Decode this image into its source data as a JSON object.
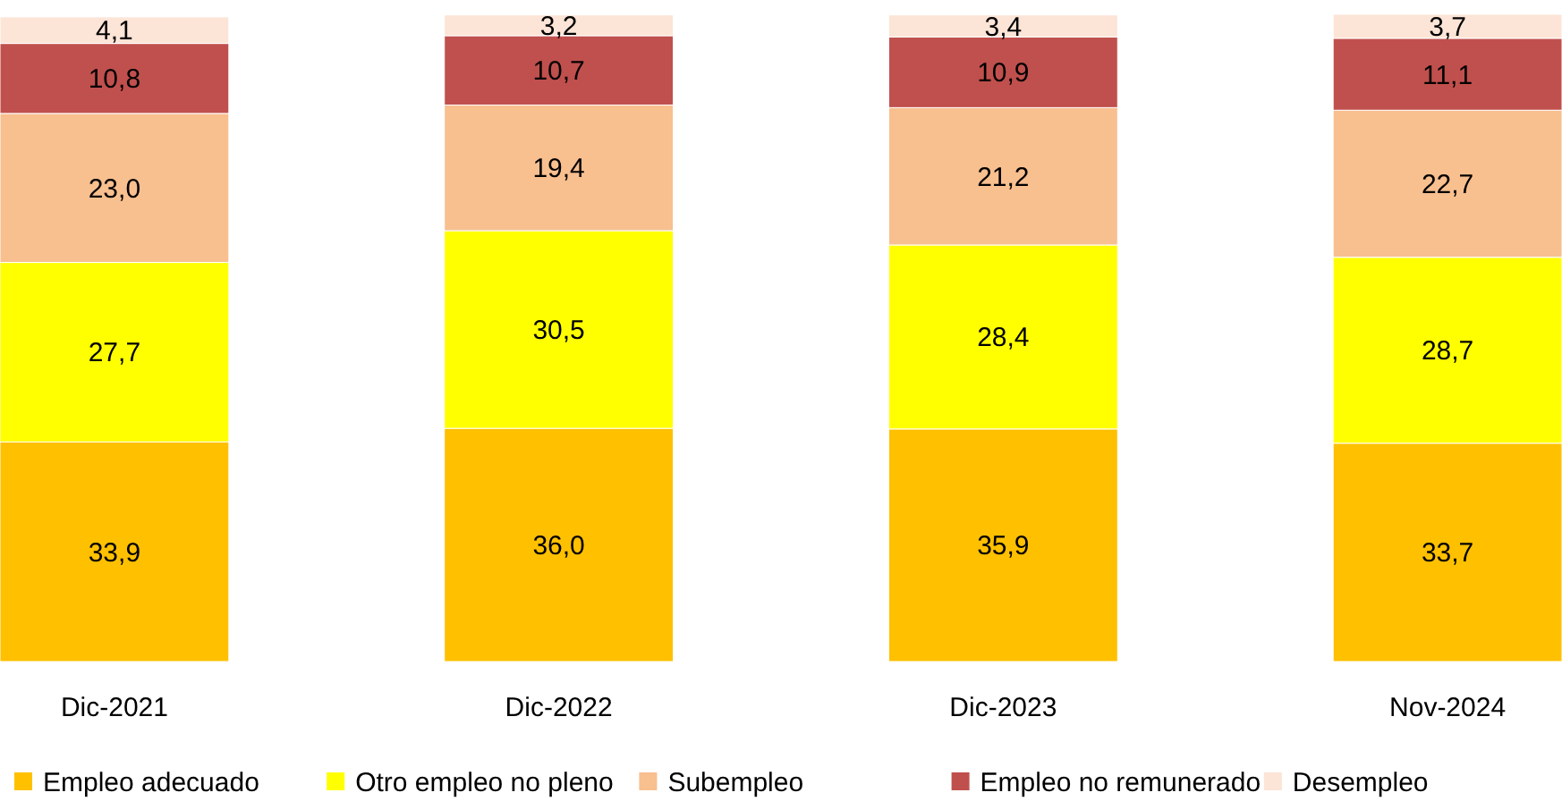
{
  "chart_data": {
    "type": "bar",
    "stacked": true,
    "legend": "bottom",
    "categories": [
      "Dic-2021",
      "Dic-2022",
      "Dic-2023",
      "Nov-2024"
    ],
    "series": [
      {
        "name": "Empleo adecuado",
        "color": "#ffc000",
        "values": [
          33.9,
          36.0,
          35.9,
          33.7
        ],
        "value_labels": [
          "33,9",
          "36,0",
          "35,9",
          "33,7"
        ]
      },
      {
        "name": "Otro empleo no pleno",
        "color": "#ffff00",
        "values": [
          27.7,
          30.5,
          28.4,
          28.7
        ],
        "value_labels": [
          "27,7",
          "30,5",
          "28,4",
          "28,7"
        ]
      },
      {
        "name": "Subempleo",
        "color": "#f8bf8f",
        "values": [
          23.0,
          19.4,
          21.2,
          22.7
        ],
        "value_labels": [
          "23,0",
          "19,4",
          "21,2",
          "22,7"
        ]
      },
      {
        "name": "Empleo no remunerado",
        "color": "#c0504d",
        "values": [
          10.8,
          10.7,
          10.9,
          11.1
        ],
        "value_labels": [
          "10,8",
          "10,7",
          "10,9",
          "11,1"
        ]
      },
      {
        "name": "Desempleo",
        "color": "#fce4d6",
        "values": [
          4.1,
          3.2,
          3.4,
          3.7
        ],
        "value_labels": [
          "4,1",
          "3,2",
          "3,4",
          "3,7"
        ]
      }
    ]
  }
}
